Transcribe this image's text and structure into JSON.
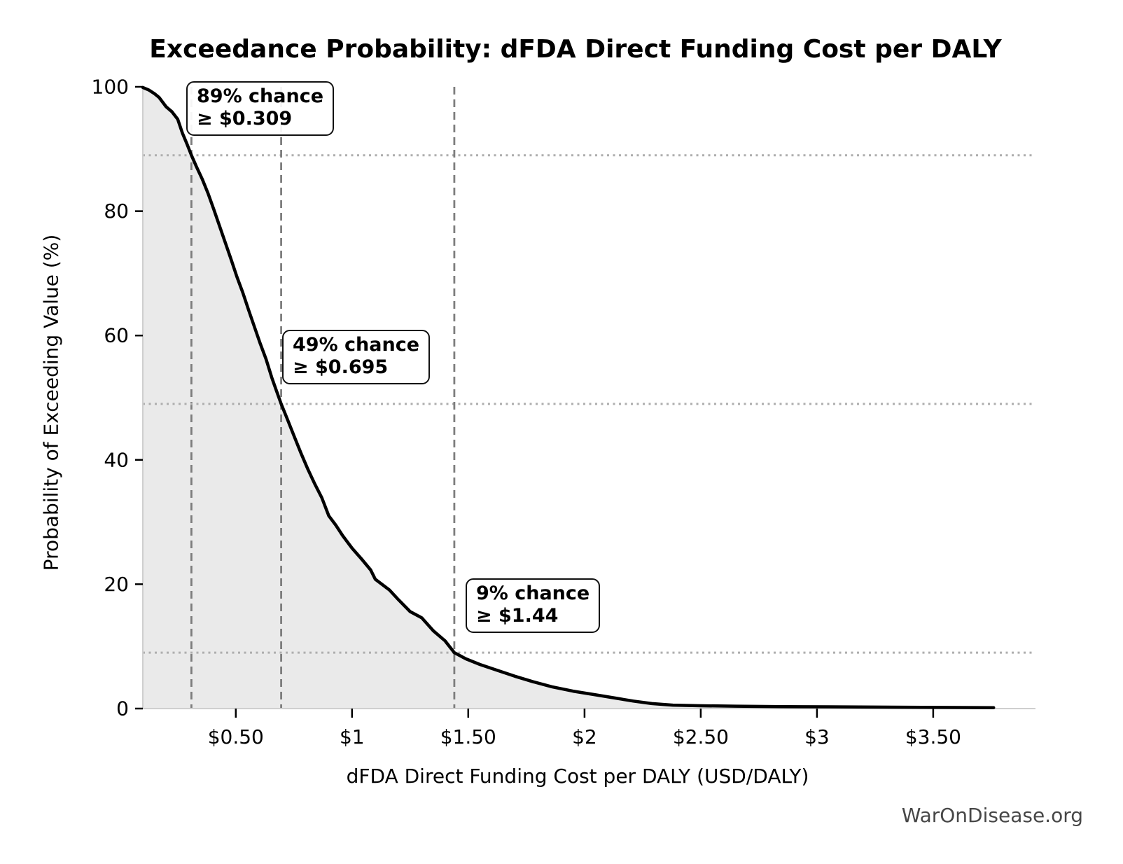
{
  "page": {
    "watermark": "WarOnDisease.org"
  },
  "chart_data": {
    "type": "area",
    "title": "Exceedance Probability: dFDA Direct Funding Cost per DALY",
    "xlabel": "dFDA Direct Funding Cost per DALY (USD/DALY)",
    "ylabel": "Probability of Exceeding Value (%)",
    "xlim": [
      0.1,
      3.94
    ],
    "ylim": [
      0,
      100
    ],
    "grid": false,
    "legend": null,
    "x_ticks": [
      {
        "value": 0.5,
        "label": "$0.50"
      },
      {
        "value": 1.0,
        "label": "$1"
      },
      {
        "value": 1.5,
        "label": "$1.50"
      },
      {
        "value": 2.0,
        "label": "$2"
      },
      {
        "value": 2.5,
        "label": "$2.50"
      },
      {
        "value": 3.0,
        "label": "$3"
      },
      {
        "value": 3.5,
        "label": "$3.50"
      }
    ],
    "y_ticks": [
      {
        "value": 0,
        "label": "0"
      },
      {
        "value": 20,
        "label": "20"
      },
      {
        "value": 40,
        "label": "40"
      },
      {
        "value": 60,
        "label": "60"
      },
      {
        "value": 80,
        "label": "80"
      },
      {
        "value": 100,
        "label": "100"
      }
    ],
    "annotations": [
      {
        "prob": 89,
        "value": 0.309,
        "line1": "89% chance",
        "line2": "≥ $0.309"
      },
      {
        "prob": 49,
        "value": 0.695,
        "line1": "49% chance",
        "line2": "≥ $0.695"
      },
      {
        "prob": 9,
        "value": 1.44,
        "line1": "9% chance",
        "line2": "≥ $1.44"
      }
    ],
    "series": [
      {
        "name": "exceedance-probability-curve",
        "points": [
          [
            0.1,
            99.9
          ],
          [
            0.125,
            99.5
          ],
          [
            0.15,
            98.9
          ],
          [
            0.17,
            98.3
          ],
          [
            0.2,
            96.8
          ],
          [
            0.225,
            96.0
          ],
          [
            0.25,
            94.8
          ],
          [
            0.27,
            92.6
          ],
          [
            0.29,
            90.8
          ],
          [
            0.309,
            89.0
          ],
          [
            0.33,
            87.2
          ],
          [
            0.355,
            85.2
          ],
          [
            0.38,
            82.9
          ],
          [
            0.405,
            80.3
          ],
          [
            0.43,
            77.6
          ],
          [
            0.455,
            74.9
          ],
          [
            0.48,
            72.2
          ],
          [
            0.505,
            69.4
          ],
          [
            0.53,
            66.9
          ],
          [
            0.555,
            64.1
          ],
          [
            0.58,
            61.4
          ],
          [
            0.605,
            58.7
          ],
          [
            0.63,
            56.2
          ],
          [
            0.655,
            53.2
          ],
          [
            0.675,
            51.1
          ],
          [
            0.695,
            49.0
          ],
          [
            0.72,
            46.7
          ],
          [
            0.75,
            43.9
          ],
          [
            0.78,
            41.1
          ],
          [
            0.81,
            38.5
          ],
          [
            0.84,
            36.1
          ],
          [
            0.87,
            33.9
          ],
          [
            0.9,
            31.0
          ],
          [
            0.93,
            29.5
          ],
          [
            0.96,
            27.8
          ],
          [
            1.0,
            25.8
          ],
          [
            1.04,
            24.1
          ],
          [
            1.08,
            22.3
          ],
          [
            1.1,
            20.8
          ],
          [
            1.16,
            19.1
          ],
          [
            1.2,
            17.5
          ],
          [
            1.25,
            15.6
          ],
          [
            1.3,
            14.6
          ],
          [
            1.35,
            12.5
          ],
          [
            1.4,
            10.9
          ],
          [
            1.44,
            9.0
          ],
          [
            1.49,
            8.0
          ],
          [
            1.55,
            7.1
          ],
          [
            1.62,
            6.2
          ],
          [
            1.7,
            5.2
          ],
          [
            1.78,
            4.3
          ],
          [
            1.86,
            3.5
          ],
          [
            1.95,
            2.8
          ],
          [
            2.05,
            2.2
          ],
          [
            2.13,
            1.7
          ],
          [
            2.21,
            1.2
          ],
          [
            2.29,
            0.8
          ],
          [
            2.38,
            0.55
          ],
          [
            2.5,
            0.45
          ],
          [
            2.65,
            0.38
          ],
          [
            2.85,
            0.32
          ],
          [
            3.05,
            0.28
          ],
          [
            3.25,
            0.24
          ],
          [
            3.45,
            0.2
          ],
          [
            3.62,
            0.17
          ],
          [
            3.76,
            0.15
          ]
        ]
      }
    ],
    "colors": {
      "curve": "#000000",
      "fill": "#eaeaea",
      "dashed_line": "#7d7d7d",
      "dotted_line": "#aeaeae",
      "spine": "#cfcfcf",
      "tick": "#000000",
      "text": "#000000",
      "watermark": "#474747"
    }
  }
}
